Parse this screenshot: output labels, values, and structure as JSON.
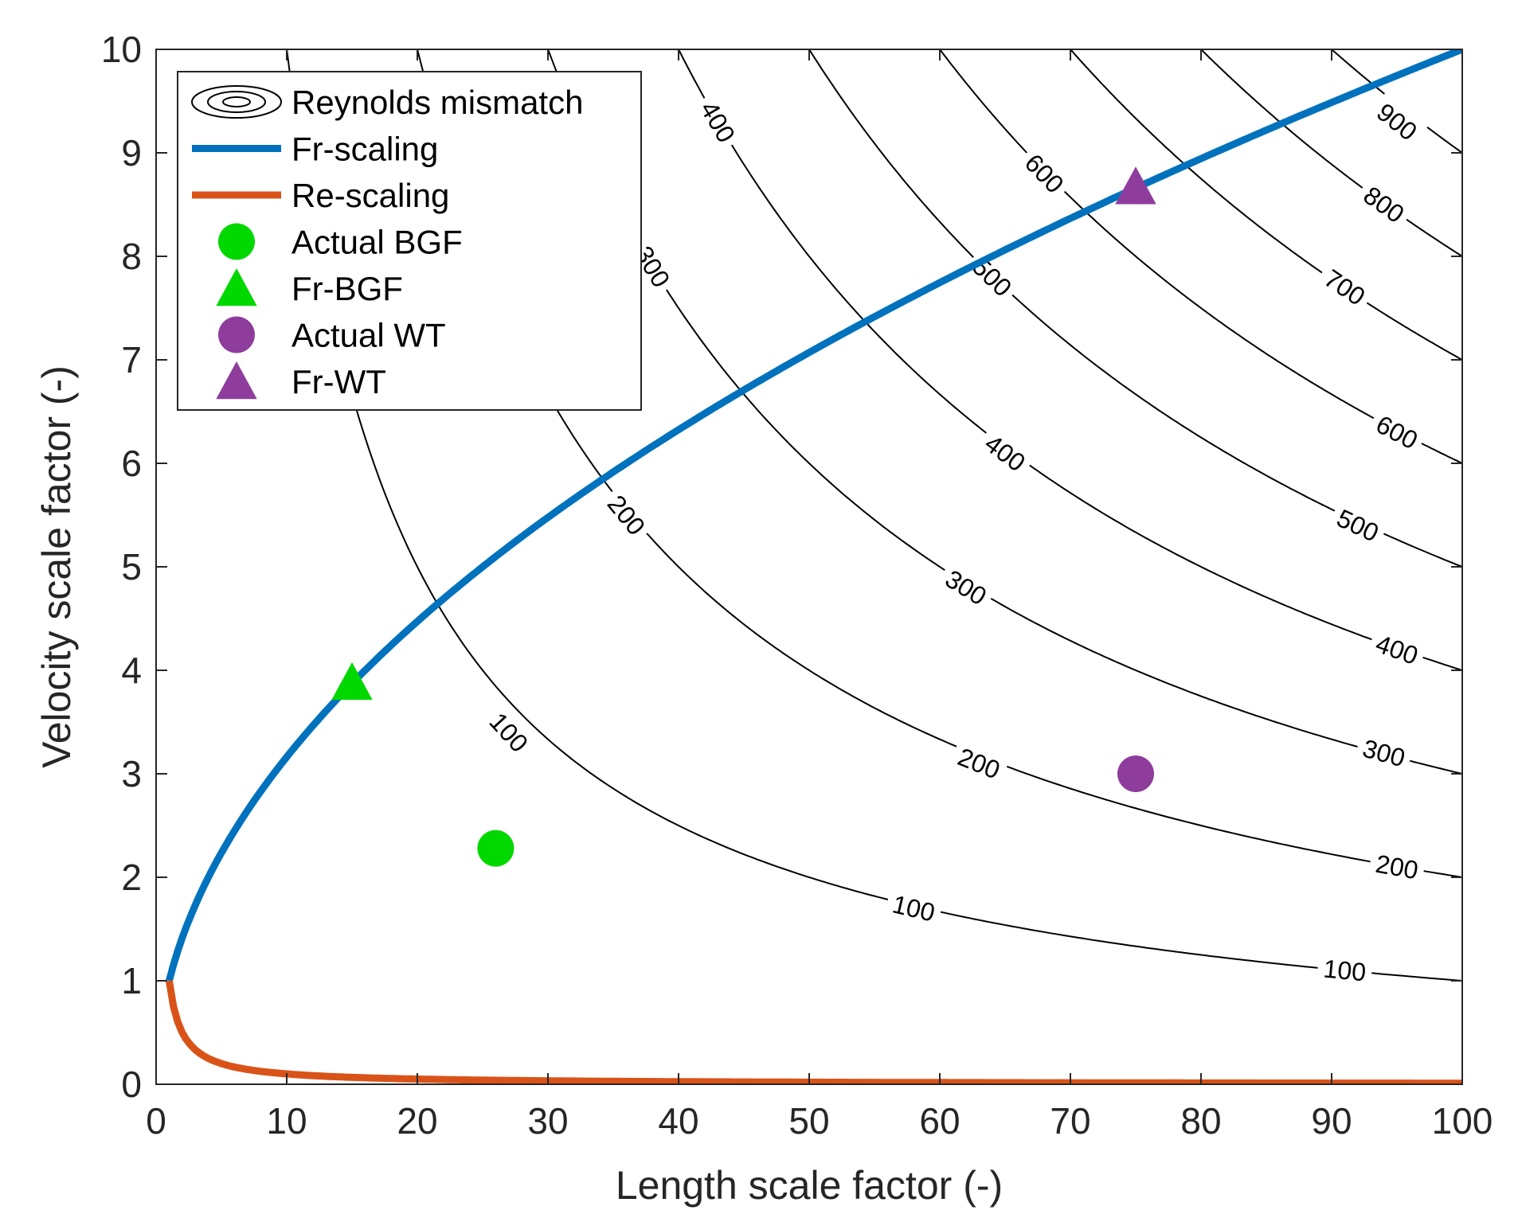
{
  "chart_data": {
    "type": "contour",
    "title": "",
    "xlabel": "Length scale factor (-)",
    "ylabel": "Velocity scale factor (-)",
    "xlim": [
      0,
      100
    ],
    "ylim": [
      0,
      10
    ],
    "x_ticks": [
      0,
      10,
      20,
      30,
      40,
      50,
      60,
      70,
      80,
      90,
      100
    ],
    "y_ticks": [
      0,
      1,
      2,
      3,
      4,
      5,
      6,
      7,
      8,
      9,
      10
    ],
    "grid": false,
    "contour_levels": [
      100,
      200,
      300,
      400,
      500,
      600,
      700,
      800,
      900
    ],
    "contour_label_positions": [
      {
        "level": 100,
        "x": 27,
        "y": 3.4
      },
      {
        "level": 100,
        "x": 58,
        "y": 1.7
      },
      {
        "level": 100,
        "x": 91,
        "y": 1.1
      },
      {
        "level": 200,
        "x": 36,
        "y": 5.5
      },
      {
        "level": 200,
        "x": 63,
        "y": 3.1
      },
      {
        "level": 200,
        "x": 95,
        "y": 2.1
      },
      {
        "level": 300,
        "x": 38,
        "y": 7.9
      },
      {
        "level": 300,
        "x": 62,
        "y": 4.8
      },
      {
        "level": 300,
        "x": 94,
        "y": 3.2
      },
      {
        "level": 400,
        "x": 43,
        "y": 9.3
      },
      {
        "level": 400,
        "x": 65,
        "y": 6.1
      },
      {
        "level": 400,
        "x": 95,
        "y": 4.2
      },
      {
        "level": 500,
        "x": 64,
        "y": 7.8
      },
      {
        "level": 500,
        "x": 92,
        "y": 5.4
      },
      {
        "level": 600,
        "x": 68,
        "y": 8.8
      },
      {
        "level": 600,
        "x": 95,
        "y": 6.3
      },
      {
        "level": 700,
        "x": 91,
        "y": 7.7
      },
      {
        "level": 800,
        "x": 94,
        "y": 8.5
      },
      {
        "level": 900,
        "x": 95,
        "y": 9.3
      }
    ],
    "series": [
      {
        "name": "Fr-scaling",
        "type": "line",
        "color": "#0072BD",
        "function": "sqrt(x)",
        "x_range": [
          1,
          100
        ]
      },
      {
        "name": "Re-scaling",
        "type": "line",
        "color": "#D95319",
        "function": "1/x",
        "x_range": [
          1,
          100
        ]
      },
      {
        "name": "Actual BGF",
        "type": "marker",
        "marker": "circle",
        "color": "#00D800",
        "x": 26,
        "y": 2.28
      },
      {
        "name": "Fr-BGF",
        "type": "marker",
        "marker": "triangle",
        "color": "#00D800",
        "x": 15,
        "y": 3.87
      },
      {
        "name": "Actual WT",
        "type": "marker",
        "marker": "circle",
        "color": "#8E3D9C",
        "x": 75,
        "y": 3.0
      },
      {
        "name": "Fr-WT",
        "type": "marker",
        "marker": "triangle",
        "color": "#8E3D9C",
        "x": 75,
        "y": 8.66
      }
    ],
    "legend": {
      "placement": "top-left",
      "entries": [
        "Reynolds mismatch",
        "Fr-scaling",
        "Re-scaling",
        "Actual BGF",
        "Fr-BGF",
        "Actual WT",
        "Fr-WT"
      ]
    }
  }
}
